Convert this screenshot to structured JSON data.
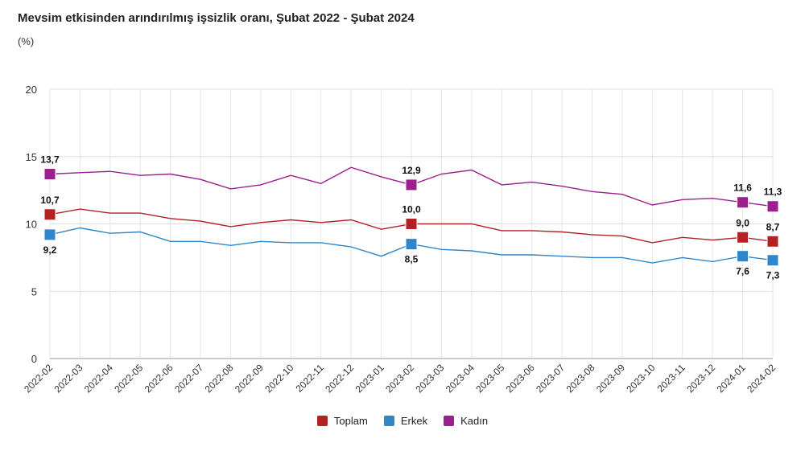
{
  "header": {
    "title": "Mevsim etkisinden arındırılmış işsizlik oranı, Şubat 2022 - Şubat 2024",
    "unit": "(%)"
  },
  "chart_data": {
    "type": "line",
    "title": "Mevsim etkisinden arındırılmış işsizlik oranı, Şubat 2022 - Şubat 2024",
    "ylabel": "(%)",
    "xlabel": "",
    "ylim": [
      0,
      20
    ],
    "yticks": [
      0,
      5,
      10,
      15,
      20
    ],
    "grid": true,
    "legend_position": "bottom-center",
    "categories": [
      "2022-02",
      "2022-03",
      "2022-04",
      "2022-05",
      "2022-06",
      "2022-07",
      "2022-08",
      "2022-09",
      "2022-10",
      "2022-11",
      "2022-12",
      "2023-01",
      "2023-02",
      "2023-03",
      "2023-04",
      "2023-05",
      "2023-06",
      "2023-07",
      "2023-08",
      "2023-09",
      "2023-10",
      "2023-11",
      "2023-12",
      "2024-01",
      "2024-02"
    ],
    "series": [
      {
        "name": "Toplam",
        "color": "#b22222",
        "values": [
          10.7,
          11.1,
          10.8,
          10.8,
          10.4,
          10.2,
          9.8,
          10.1,
          10.3,
          10.1,
          10.3,
          9.6,
          10.0,
          10.0,
          10.0,
          9.5,
          9.5,
          9.4,
          9.2,
          9.1,
          8.6,
          9.0,
          8.8,
          9.0,
          8.7
        ],
        "labels": [
          {
            "index": 0,
            "text": "10,7",
            "pos": "above"
          },
          {
            "index": 12,
            "text": "10,0",
            "pos": "above"
          },
          {
            "index": 23,
            "text": "9,0",
            "pos": "above"
          },
          {
            "index": 24,
            "text": "8,7",
            "pos": "above"
          }
        ]
      },
      {
        "name": "Erkek",
        "color": "#2f86c8",
        "values": [
          9.2,
          9.7,
          9.3,
          9.4,
          8.7,
          8.7,
          8.4,
          8.7,
          8.6,
          8.6,
          8.3,
          7.6,
          8.5,
          8.1,
          8.0,
          7.7,
          7.7,
          7.6,
          7.5,
          7.5,
          7.1,
          7.5,
          7.2,
          7.6,
          7.3
        ],
        "labels": [
          {
            "index": 0,
            "text": "9,2",
            "pos": "below"
          },
          {
            "index": 12,
            "text": "8,5",
            "pos": "below"
          },
          {
            "index": 23,
            "text": "7,6",
            "pos": "below"
          },
          {
            "index": 24,
            "text": "7,3",
            "pos": "below"
          }
        ]
      },
      {
        "name": "Kadın",
        "color": "#9b1f8c",
        "values": [
          13.7,
          13.8,
          13.9,
          13.6,
          13.7,
          13.3,
          12.6,
          12.9,
          13.6,
          13.0,
          14.2,
          13.5,
          12.9,
          13.7,
          14.0,
          12.9,
          13.1,
          12.8,
          12.4,
          12.2,
          11.4,
          11.8,
          11.9,
          11.6,
          11.3
        ],
        "labels": [
          {
            "index": 0,
            "text": "13,7",
            "pos": "above"
          },
          {
            "index": 12,
            "text": "12,9",
            "pos": "above"
          },
          {
            "index": 23,
            "text": "11,6",
            "pos": "above"
          },
          {
            "index": 24,
            "text": "11,3",
            "pos": "above"
          }
        ]
      }
    ]
  }
}
